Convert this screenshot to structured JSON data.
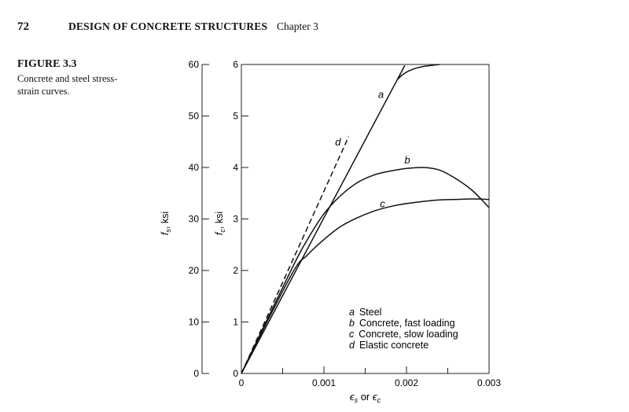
{
  "header": {
    "page_number": "72",
    "book_title": "DESIGN OF CONCRETE STRUCTURES",
    "chapter": "Chapter 3"
  },
  "figure": {
    "label": "FIGURE 3.3",
    "caption_line1": "Concrete and steel stress-",
    "caption_line2": "strain curves."
  },
  "chart_data": {
    "type": "line",
    "x_axis": {
      "label_prefix": "ϵ",
      "label_sub1": "s",
      "label_middle": " or ",
      "label_sub2": "c",
      "range": [
        0,
        0.003
      ],
      "ticks": [
        0,
        0.001,
        0.002,
        0.003
      ],
      "tick_labels": [
        "0",
        "0.001",
        "0.002",
        "0.003"
      ],
      "minor_ticks": [
        0.0005,
        0.0015,
        0.0025
      ]
    },
    "y_axis_left": {
      "label_main": "f",
      "label_sub": "s",
      "label_unit": ", ksi",
      "range": [
        0,
        60
      ],
      "ticks": [
        0,
        10,
        20,
        30,
        40,
        50,
        60
      ],
      "tick_labels": [
        "0",
        "10",
        "20",
        "30",
        "40",
        "50",
        "60"
      ]
    },
    "y_axis_right": {
      "label_main": "f",
      "label_sub": "c",
      "label_unit": ", ksi",
      "range": [
        0,
        6
      ],
      "ticks": [
        0,
        1,
        2,
        3,
        4,
        5,
        6
      ],
      "tick_labels": [
        "0",
        "1",
        "2",
        "3",
        "4",
        "5",
        "6"
      ]
    },
    "series": [
      {
        "id": "a",
        "name": "Steel",
        "style": "solid",
        "points": [
          [
            0,
            0
          ],
          [
            0.00182,
            5.5
          ],
          [
            0.0019,
            5.72
          ],
          [
            0.002,
            5.85
          ],
          [
            0.0021,
            5.92
          ],
          [
            0.0022,
            5.96
          ],
          [
            0.0024,
            6.0
          ]
        ]
      },
      {
        "id": "b",
        "name": "Concrete, fast loading",
        "style": "solid",
        "points": [
          [
            0,
            0
          ],
          [
            0.0006,
            2.0
          ],
          [
            0.0008,
            2.6
          ],
          [
            0.001,
            3.1
          ],
          [
            0.0012,
            3.45
          ],
          [
            0.0014,
            3.7
          ],
          [
            0.0016,
            3.85
          ],
          [
            0.0018,
            3.93
          ],
          [
            0.002,
            3.98
          ],
          [
            0.0022,
            4.0
          ],
          [
            0.0024,
            3.95
          ],
          [
            0.0026,
            3.78
          ],
          [
            0.0028,
            3.55
          ],
          [
            0.003,
            3.22
          ]
        ]
      },
      {
        "id": "c",
        "name": "Concrete, slow loading",
        "style": "solid",
        "points": [
          [
            0,
            0
          ],
          [
            0.0006,
            1.9
          ],
          [
            0.0008,
            2.3
          ],
          [
            0.001,
            2.6
          ],
          [
            0.0012,
            2.85
          ],
          [
            0.0014,
            3.02
          ],
          [
            0.0016,
            3.15
          ],
          [
            0.0018,
            3.24
          ],
          [
            0.002,
            3.3
          ],
          [
            0.0022,
            3.34
          ],
          [
            0.0024,
            3.37
          ],
          [
            0.0026,
            3.38
          ],
          [
            0.0028,
            3.39
          ],
          [
            0.003,
            3.38
          ]
        ]
      },
      {
        "id": "d",
        "name": "Elastic concrete",
        "style": "dashed",
        "points": [
          [
            0,
            0
          ],
          [
            0.0013,
            4.6
          ]
        ]
      }
    ],
    "curve_labels": [
      {
        "id": "a",
        "text": "a",
        "x": 0.00169,
        "y": 5.35
      },
      {
        "id": "b",
        "text": "b",
        "x": 0.00201,
        "y": 4.08
      },
      {
        "id": "c",
        "text": "c",
        "x": 0.00171,
        "y": 3.23
      },
      {
        "id": "d",
        "text": "d",
        "x": 0.00117,
        "y": 4.43
      }
    ],
    "legend": {
      "placement": "bottom-right",
      "entries": [
        {
          "key": "a",
          "text": "Steel"
        },
        {
          "key": "b",
          "text": "Concrete, fast loading"
        },
        {
          "key": "c",
          "text": "Concrete, slow loading"
        },
        {
          "key": "d",
          "text": "Elastic concrete"
        }
      ]
    },
    "grid": false
  }
}
